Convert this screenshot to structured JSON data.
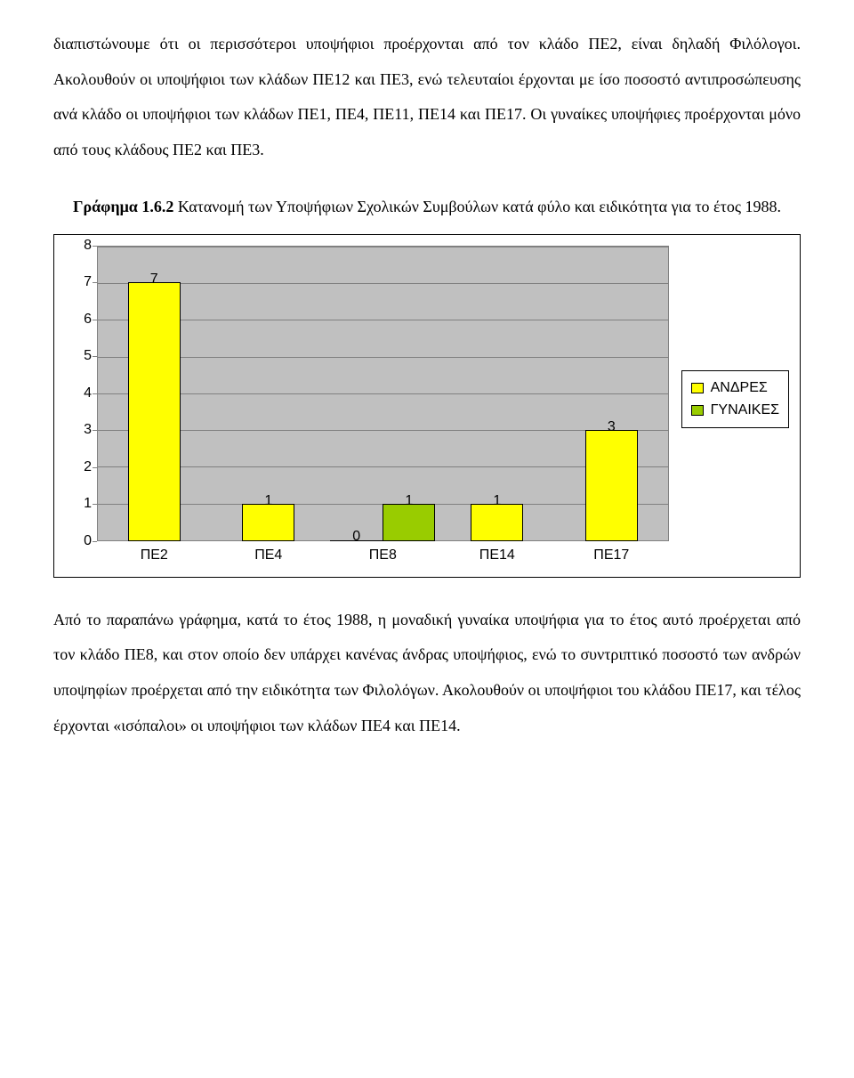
{
  "para1": "διαπιστώνουμε ότι οι περισσότεροι υποψήφιοι προέρχονται από τον κλάδο ΠΕ2, είναι δηλαδή Φιλόλογοι. Ακολουθούν οι υποψήφιοι των κλάδων ΠΕ12 και ΠΕ3, ενώ τελευταίοι έρχονται με ίσο ποσοστό αντιπροσώπευσης ανά κλάδο οι υποψήφιοι των κλάδων ΠΕ1, ΠΕ4, ΠΕ11, ΠΕ14 και ΠΕ17. Οι γυναίκες υποψήφιες προέρχονται μόνο από τους κλάδους ΠΕ2 και ΠΕ3.",
  "caption_bold": "Γράφημα 1.6.2",
  "caption_rest": " Κατανομή των Υποψήφιων Σχολικών Συμβούλων κατά φύλο και ειδικότητα για το έτος 1988.",
  "chart": {
    "y_max": 8,
    "categories": [
      "ΠΕ2",
      "ΠΕ4",
      "ΠΕ8",
      "ΠΕ14",
      "ΠΕ17"
    ],
    "series": [
      {
        "name": "ΑΝΔΡΕΣ",
        "color": "#ffff00",
        "values": [
          7,
          1,
          0,
          1,
          3
        ]
      },
      {
        "name": "ΓΥΝΑΙΚΕΣ",
        "color": "#99cc00",
        "values": [
          null,
          null,
          1,
          null,
          null
        ]
      }
    ],
    "grid_color": "#808080",
    "plot_bg": "#c0c0c0",
    "legend": [
      "ΑΝΔΡΕΣ",
      "ΓΥΝΑΙΚΕΣ"
    ]
  },
  "para2": "Από το παραπάνω γράφημα, κατά το έτος 1988, η μοναδική γυναίκα υποψήφια για το έτος αυτό προέρχεται από τον κλάδο ΠΕ8, και στον οποίο δεν υπάρχει κανένας άνδρας υποψήφιος, ενώ το συντριπτικό ποσοστό των ανδρών υποψηφίων προέρχεται από την ειδικότητα των Φιλολόγων. Ακολουθούν οι υποψήφιοι του κλάδου ΠΕ17, και τέλος έρχονται «ισόπαλοι» οι υποψήφιοι των κλάδων ΠΕ4 και ΠΕ14."
}
